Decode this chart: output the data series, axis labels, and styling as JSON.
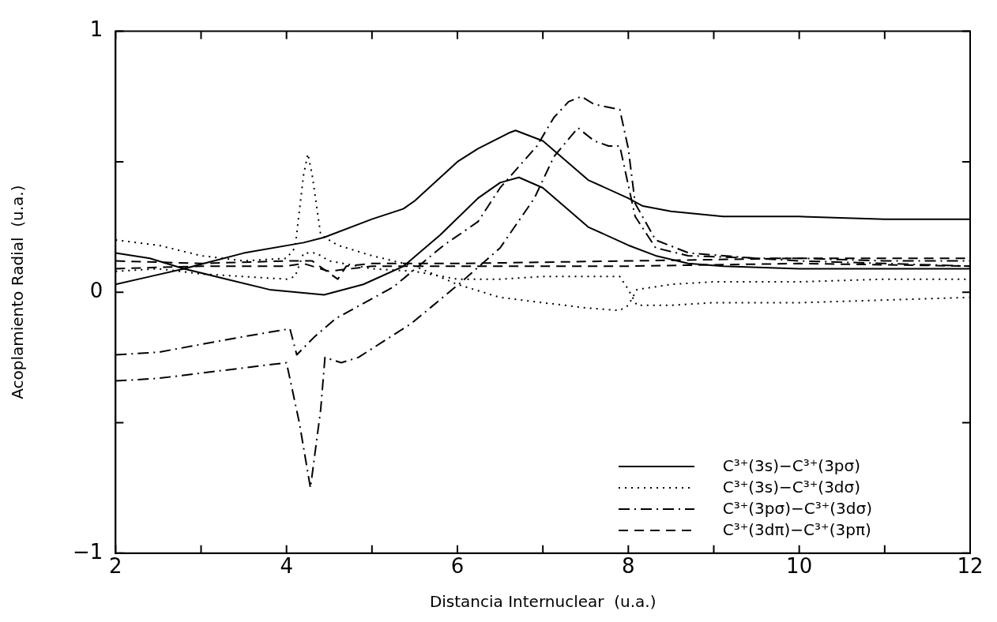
{
  "chart_data": {
    "type": "line",
    "xlabel": "Distancia Internuclear  (u.a.)",
    "ylabel": "Acoplamiento Radial  (u.a.)",
    "xlim": [
      2,
      12
    ],
    "xticks": [
      2,
      {
        "value": 3,
        "label": null
      },
      4,
      {
        "value": 5,
        "label": null
      },
      6,
      {
        "value": 7,
        "label": null
      },
      8,
      {
        "value": 9,
        "label": null
      },
      10,
      {
        "value": 11,
        "label": null
      },
      12
    ],
    "ylim": [
      -1,
      1
    ],
    "yticks": [
      -1,
      {
        "value": -0.5,
        "label": null
      },
      0,
      {
        "value": 0.5,
        "label": null
      },
      1
    ],
    "legend": "bottom right",
    "marker": "none",
    "series": [
      {
        "name": "C³⁺(3s)−C³⁺(3pσ)",
        "color": "#000000",
        "line_style": "solid",
        "x": [
          2,
          2.4,
          2.8,
          3.5,
          4.2,
          4.44,
          5,
          5.37,
          5.5,
          6,
          6.24,
          6.6,
          6.68,
          7,
          7.53,
          8,
          8.17,
          8.5,
          9.11,
          10,
          11,
          12
        ],
        "values": [
          0.03,
          0.06,
          0.09,
          0.15,
          0.19,
          0.21,
          0.28,
          0.32,
          0.35,
          0.5,
          0.55,
          0.61,
          0.62,
          0.58,
          0.43,
          0.36,
          0.33,
          0.31,
          0.29,
          0.29,
          0.28,
          0.28
        ]
      },
      {
        "color": "#000000",
        "line_style": "solid",
        "x": [
          2,
          2.4,
          2.8,
          3.3,
          3.8,
          4.44,
          4.9,
          5.37,
          5.8,
          6.24,
          6.5,
          6.72,
          7,
          7.53,
          8,
          8.32,
          8.7,
          9.11,
          10,
          11,
          12
        ],
        "values": [
          0.15,
          0.13,
          0.09,
          0.05,
          0.01,
          -0.01,
          0.03,
          0.1,
          0.22,
          0.36,
          0.42,
          0.44,
          0.4,
          0.25,
          0.18,
          0.14,
          0.11,
          0.1,
          0.09,
          0.09,
          0.09
        ]
      },
      {
        "name": "C³⁺(3s)−C³⁺(3dσ)",
        "color": "#000000",
        "line_style": "dotted",
        "x": [
          2,
          2.5,
          3,
          3.5,
          4,
          4.1,
          4.2,
          4.25,
          4.3,
          4.4,
          4.6,
          5,
          5.5,
          6,
          6.5,
          7,
          7.5,
          7.9,
          8,
          8.1,
          8.5,
          9,
          10,
          11,
          12
        ],
        "values": [
          0.2,
          0.18,
          0.14,
          0.12,
          0.13,
          0.17,
          0.45,
          0.53,
          0.45,
          0.22,
          0.18,
          0.14,
          0.1,
          0.03,
          -0.02,
          -0.04,
          -0.06,
          -0.07,
          -0.05,
          0.01,
          0.03,
          0.04,
          0.04,
          0.05,
          0.05
        ]
      },
      {
        "color": "#000000",
        "line_style": "dotted",
        "x": [
          2,
          2.5,
          3,
          3.5,
          4,
          4.1,
          4.2,
          4.35,
          4.5,
          5,
          5.5,
          6,
          6.5,
          7,
          7.5,
          7.9,
          8,
          8.1,
          8.5,
          9,
          10,
          11,
          12
        ],
        "values": [
          0.08,
          0.09,
          0.07,
          0.06,
          0.05,
          0.06,
          0.15,
          0.15,
          0.12,
          0.09,
          0.08,
          0.05,
          0.05,
          0.06,
          0.06,
          0.06,
          0.01,
          -0.05,
          -0.05,
          -0.04,
          -0.04,
          -0.03,
          -0.02
        ]
      },
      {
        "name": "C³⁺(3pσ)−C³⁺(3dσ)",
        "color": "#000000",
        "line_style": "dashdot",
        "x": [
          2,
          2.5,
          3,
          3.5,
          4.04,
          4.12,
          4.33,
          4.58,
          5.25,
          5.84,
          6.24,
          6.5,
          6.93,
          7.13,
          7.3,
          7.45,
          7.6,
          7.9,
          8,
          8.08,
          8.32,
          8.71,
          9.5,
          10,
          11,
          12
        ],
        "values": [
          -0.24,
          -0.23,
          -0.2,
          -0.17,
          -0.14,
          -0.24,
          -0.17,
          -0.1,
          0.02,
          0.18,
          0.27,
          0.4,
          0.56,
          0.67,
          0.73,
          0.75,
          0.72,
          0.7,
          0.55,
          0.34,
          0.2,
          0.15,
          0.13,
          0.12,
          0.11,
          0.1
        ]
      },
      {
        "color": "#000000",
        "line_style": "dashdot",
        "x": [
          2,
          2.5,
          3,
          3.5,
          4,
          4.15,
          4.28,
          4.4,
          4.45,
          4.64,
          4.84,
          5.46,
          6.05,
          6.5,
          6.9,
          7.13,
          7.41,
          7.6,
          7.77,
          7.9,
          8.08,
          8.32,
          8.7,
          9.5,
          10,
          11,
          12
        ],
        "values": [
          -0.34,
          -0.33,
          -0.31,
          -0.29,
          -0.27,
          -0.5,
          -0.75,
          -0.45,
          -0.25,
          -0.27,
          -0.25,
          -0.12,
          0.04,
          0.17,
          0.36,
          0.52,
          0.63,
          0.58,
          0.56,
          0.56,
          0.29,
          0.17,
          0.14,
          0.13,
          0.13,
          0.12,
          0.12
        ]
      },
      {
        "name": "C³⁺(3dπ)−C³⁺(3pπ)",
        "color": "#000000",
        "line_style": "dashed",
        "x": [
          2,
          3,
          4,
          4.3,
          4.6,
          4.7,
          5,
          6,
          8,
          10,
          12
        ],
        "values": [
          0.12,
          0.11,
          0.12,
          0.12,
          0.05,
          0.1,
          0.11,
          0.11,
          0.12,
          0.13,
          0.13
        ]
      },
      {
        "color": "#000000",
        "line_style": "dashed",
        "x": [
          2,
          3,
          4,
          4.2,
          4.5,
          5,
          6,
          8,
          10,
          12
        ],
        "values": [
          0.09,
          0.1,
          0.1,
          0.11,
          0.08,
          0.1,
          0.1,
          0.1,
          0.11,
          0.1
        ]
      }
    ]
  }
}
